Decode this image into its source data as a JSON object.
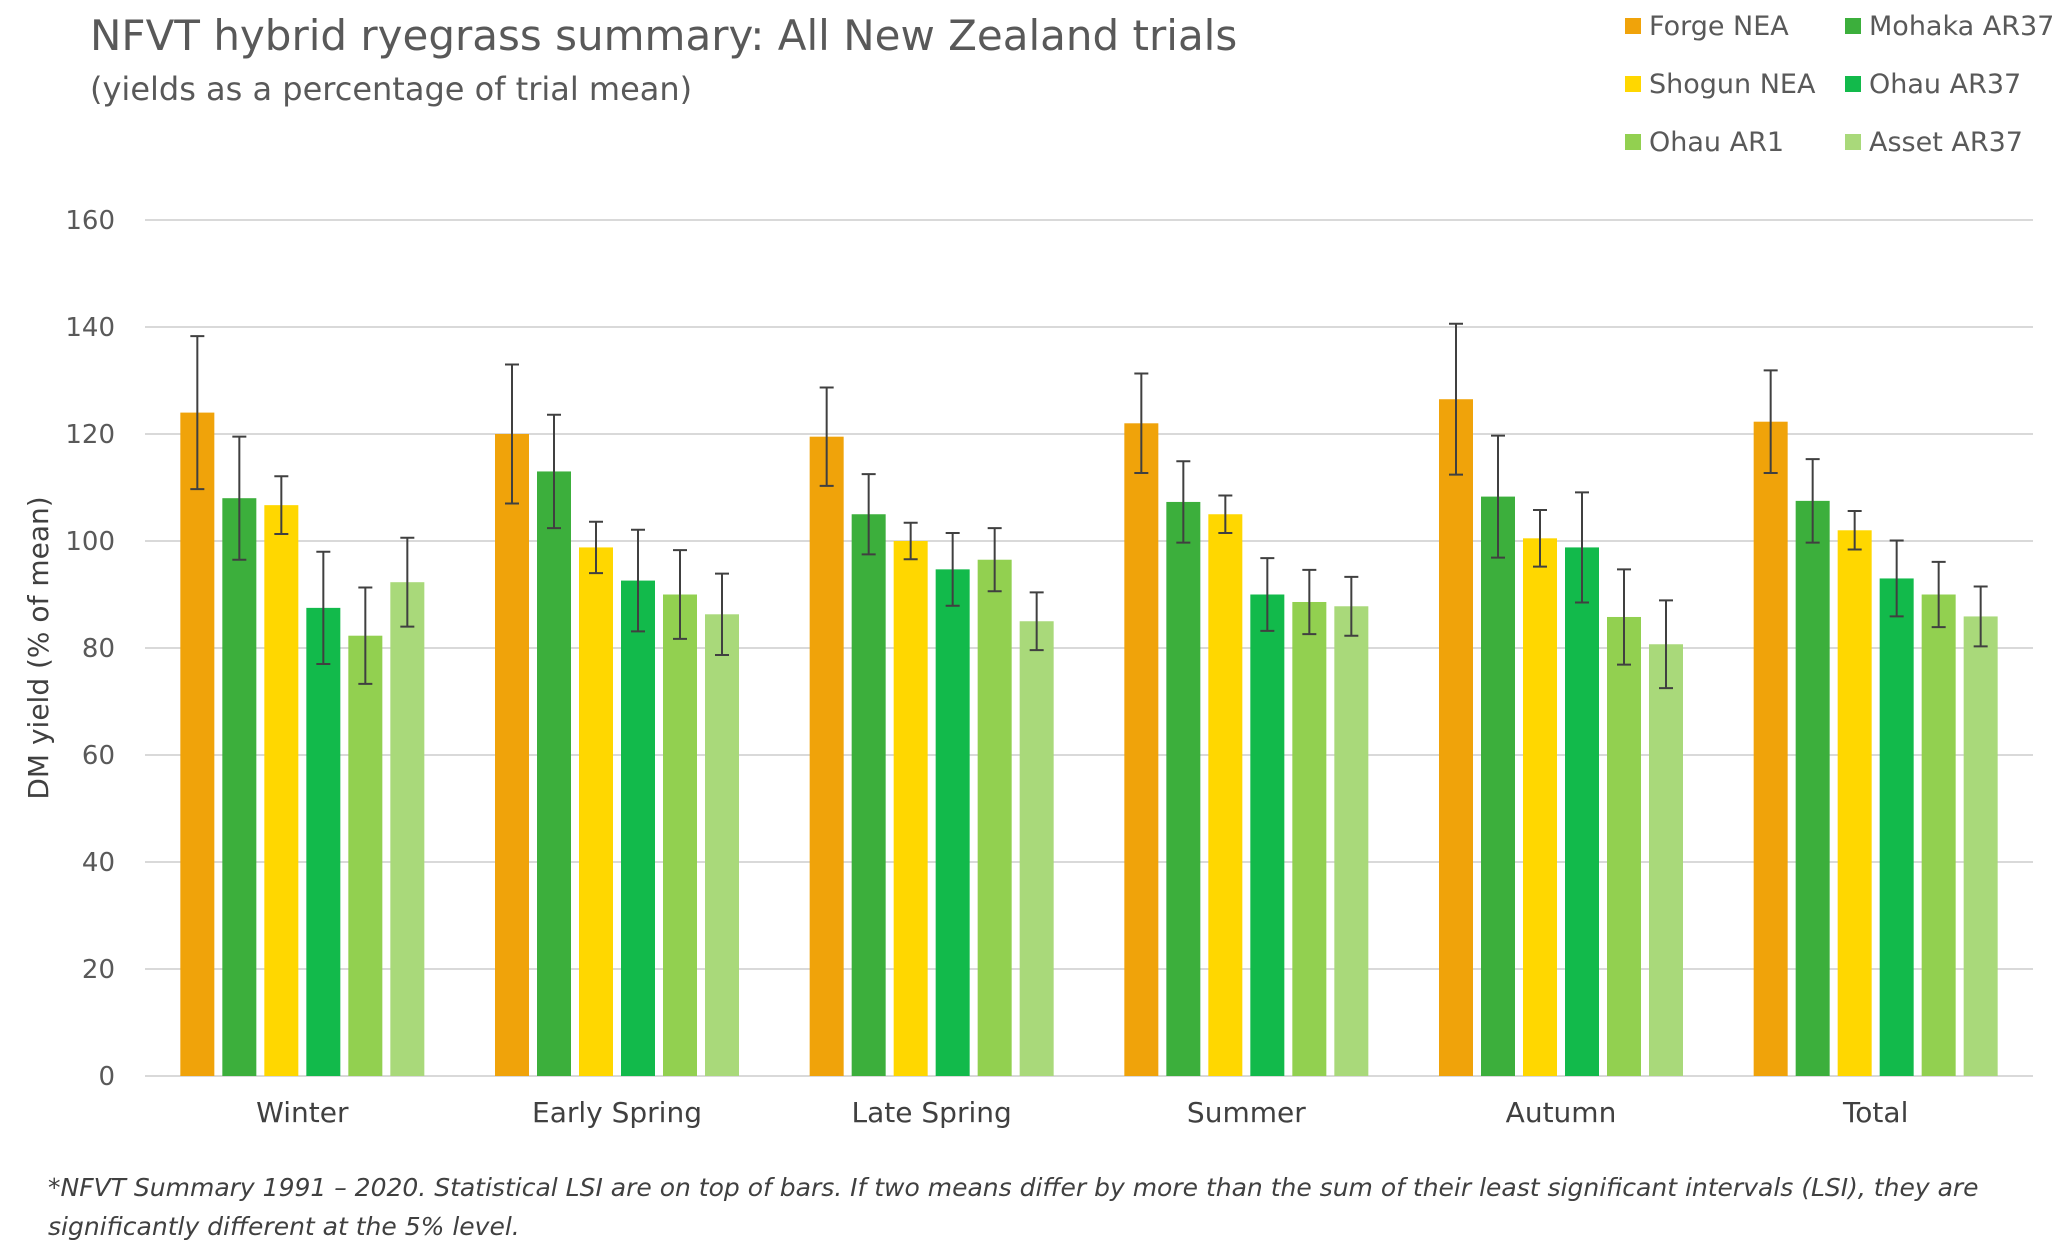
{
  "chart_data": {
    "type": "bar",
    "title": "NFVT hybrid ryegrass summary: All New Zealand trials",
    "subtitle": "(yields as a percentage of trial mean)",
    "xlabel": "",
    "ylabel": "DM yield (% of mean)",
    "ylim": [
      0,
      160
    ],
    "yticks": [
      0,
      20,
      40,
      60,
      80,
      100,
      120,
      140,
      160
    ],
    "grid": true,
    "legend_position": "top-right",
    "categories": [
      "Winter",
      "Early Spring",
      "Late Spring",
      "Summer",
      "Autumn",
      "Total"
    ],
    "series": [
      {
        "name": "Forge NEA",
        "color": "#F0A30A",
        "values": [
          124,
          120,
          119.5,
          122,
          126.5,
          122.3
        ],
        "error": [
          14.3,
          13,
          9.2,
          9.3,
          14.1,
          9.6
        ]
      },
      {
        "name": "Mohaka AR37",
        "color": "#3CAF3C",
        "values": [
          108,
          113,
          105,
          107.3,
          108.3,
          107.5
        ],
        "error": [
          11.5,
          10.6,
          7.5,
          7.6,
          11.4,
          7.8
        ]
      },
      {
        "name": "Shogun NEA",
        "color": "#FFD700",
        "values": [
          106.7,
          98.8,
          100,
          105,
          100.5,
          102
        ],
        "error": [
          5.4,
          4.8,
          3.4,
          3.5,
          5.3,
          3.6
        ]
      },
      {
        "name": "Ohau AR37",
        "color": "#12BA4B",
        "values": [
          87.5,
          92.6,
          94.7,
          90,
          98.8,
          93
        ],
        "error": [
          10.5,
          9.5,
          6.8,
          6.8,
          10.3,
          7.1
        ]
      },
      {
        "name": "Ohau AR1",
        "color": "#92D050",
        "values": [
          82.3,
          90,
          96.5,
          88.6,
          85.8,
          90
        ],
        "error": [
          9,
          8.3,
          5.9,
          6,
          8.9,
          6.1
        ]
      },
      {
        "name": "Asset AR37",
        "color": "#A9D97A",
        "values": [
          92.3,
          86.3,
          85,
          87.8,
          80.7,
          85.9
        ],
        "error": [
          8.3,
          7.6,
          5.4,
          5.5,
          8.2,
          5.6
        ]
      }
    ],
    "footnote_line1": "*NFVT Summary 1991 – 2020. Statistical LSI are on top of bars. If two means differ by more than the sum of their least significant intervals (LSI), they are",
    "footnote_line2": "significantly different at the 5% level."
  }
}
